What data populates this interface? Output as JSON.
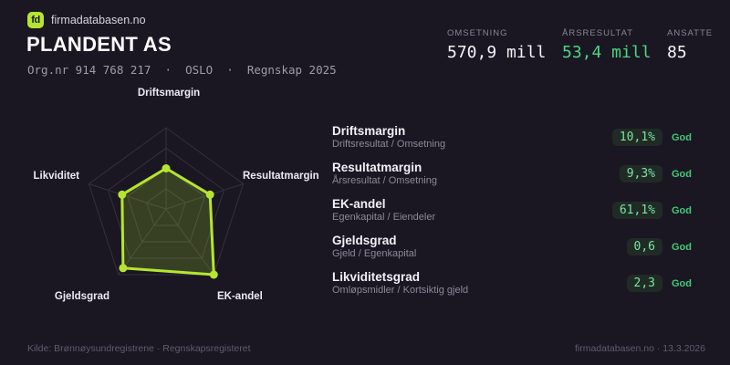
{
  "header": {
    "logo_text": "fd",
    "brand": "firmadatabasen.no",
    "company_name": "PLANDENT AS",
    "meta_line": "Org.nr 914 768 217  ·  OSLO  ·  Regnskap 2025"
  },
  "stats": [
    {
      "label": "OMSETNING",
      "value": "570,9 mill"
    },
    {
      "label": "ÅRSRESULTAT",
      "value": "53,4 mill"
    },
    {
      "label": "ANSATTE",
      "value": "85"
    }
  ],
  "chart_data": {
    "type": "radar",
    "axes": [
      "Driftsmargin",
      "Resultatmargin",
      "EK-andel",
      "Gjeldsgrad",
      "Likviditet"
    ],
    "values_normalized": [
      0.5,
      0.57,
      1.0,
      0.9,
      0.57
    ],
    "axis_values": [
      "10,1%",
      "9,3%",
      "61,1%",
      "0,6",
      "2,3"
    ],
    "grid_levels": 4,
    "legend": "none",
    "line_color": "#b6e52f",
    "fill_color": "rgba(182,229,47,0.20)",
    "grid_color": "#343040"
  },
  "metrics": [
    {
      "title": "Driftsmargin",
      "formula": "Driftsresultat / Omsetning",
      "value": "10,1%",
      "rating": "God"
    },
    {
      "title": "Resultatmargin",
      "formula": "Årsresultat / Omsetning",
      "value": "9,3%",
      "rating": "God"
    },
    {
      "title": "EK-andel",
      "formula": "Egenkapital / Eiendeler",
      "value": "61,1%",
      "rating": "God"
    },
    {
      "title": "Gjeldsgrad",
      "formula": "Gjeld / Egenkapital",
      "value": "0,6",
      "rating": "God"
    },
    {
      "title": "Likviditetsgrad",
      "formula": "Omløpsmidler / Kortsiktig gjeld",
      "value": "2,3",
      "rating": "God"
    }
  ],
  "footer": {
    "source": "Kilde: Brønnøysundregistrene · Regnskapsregisteret",
    "attribution": "firmadatabasen.no · 13.3.2026"
  },
  "colors": {
    "background": "#1a1722",
    "lime_accent": "#b6e52f",
    "green_accent": "#4cd782",
    "pill_bg": "#212b25",
    "pill_text": "#79e3a3",
    "rating_green": "#3ecb78"
  }
}
